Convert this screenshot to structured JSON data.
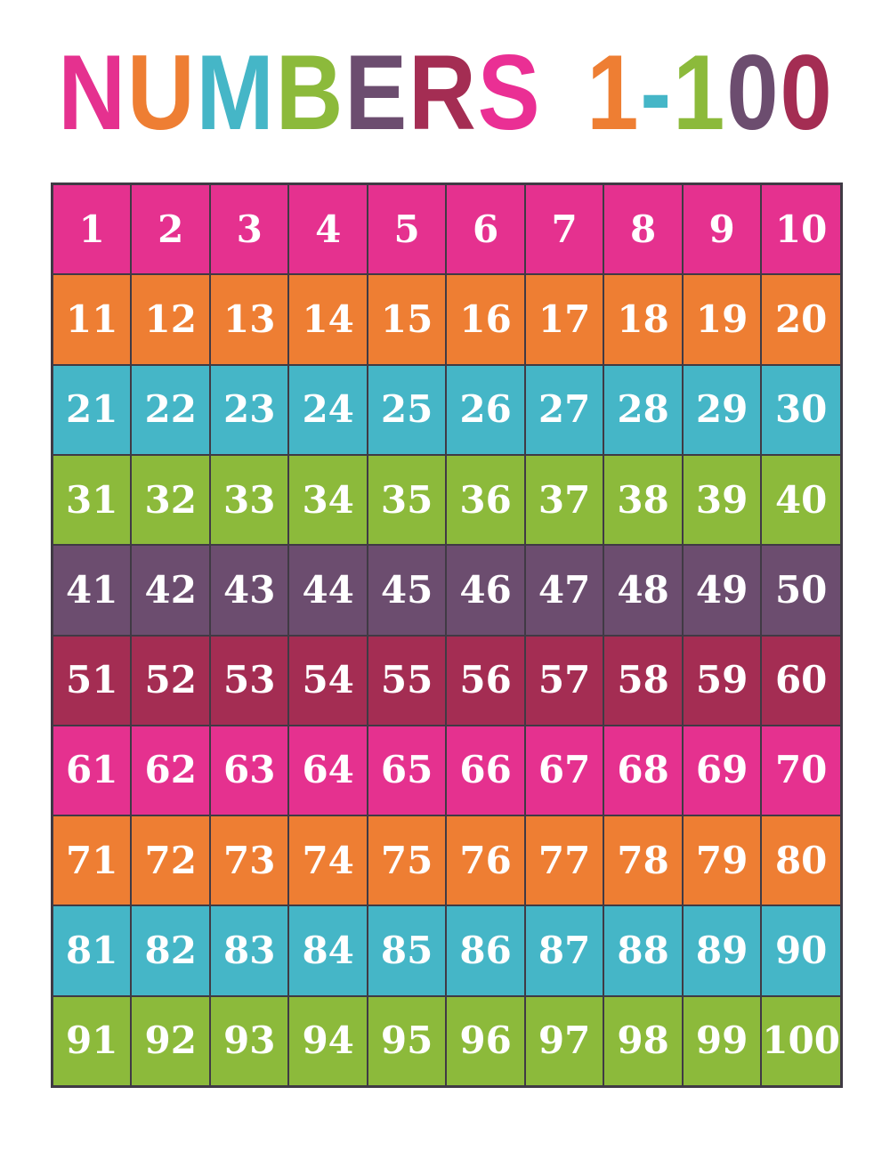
{
  "page": {
    "background_color": "#ffffff"
  },
  "title": {
    "text": "NUMBERS 1-100",
    "letters": [
      {
        "char": "N",
        "color": "#e5318f"
      },
      {
        "char": "U",
        "color": "#ee7e33"
      },
      {
        "char": "M",
        "color": "#45b6c7"
      },
      {
        "char": "B",
        "color": "#8cba3b"
      },
      {
        "char": "E",
        "color": "#6c4d6f"
      },
      {
        "char": "R",
        "color": "#a42d53"
      },
      {
        "char": "S",
        "color": "#ea2f94"
      },
      {
        "char": " ",
        "color": ""
      },
      {
        "char": "1",
        "color": "#ee7e33"
      },
      {
        "char": "-",
        "color": "#45b6c7"
      },
      {
        "char": "1",
        "color": "#8cba3b"
      },
      {
        "char": "0",
        "color": "#6c4d6f"
      },
      {
        "char": "0",
        "color": "#a42d53"
      }
    ]
  },
  "grid": {
    "rows_count": 10,
    "columns_count": 10,
    "border_color": "#403a44",
    "number_color": "#ffffff",
    "row_colors_cycle": [
      "#e5318f",
      "#ee7e33",
      "#45b6c7",
      "#8cba3b",
      "#6c4d6f",
      "#a42d53"
    ],
    "rows": [
      {
        "color": "#e5318f",
        "numbers": [
          1,
          2,
          3,
          4,
          5,
          6,
          7,
          8,
          9,
          10
        ]
      },
      {
        "color": "#ee7e33",
        "numbers": [
          11,
          12,
          13,
          14,
          15,
          16,
          17,
          18,
          19,
          20
        ]
      },
      {
        "color": "#45b6c7",
        "numbers": [
          21,
          22,
          23,
          24,
          25,
          26,
          27,
          28,
          29,
          30
        ]
      },
      {
        "color": "#8cba3b",
        "numbers": [
          31,
          32,
          33,
          34,
          35,
          36,
          37,
          38,
          39,
          40
        ]
      },
      {
        "color": "#6c4d6f",
        "numbers": [
          41,
          42,
          43,
          44,
          45,
          46,
          47,
          48,
          49,
          50
        ]
      },
      {
        "color": "#a42d53",
        "numbers": [
          51,
          52,
          53,
          54,
          55,
          56,
          57,
          58,
          59,
          60
        ]
      },
      {
        "color": "#e5318f",
        "numbers": [
          61,
          62,
          63,
          64,
          65,
          66,
          67,
          68,
          69,
          70
        ]
      },
      {
        "color": "#ee7e33",
        "numbers": [
          71,
          72,
          73,
          74,
          75,
          76,
          77,
          78,
          79,
          80
        ]
      },
      {
        "color": "#45b6c7",
        "numbers": [
          81,
          82,
          83,
          84,
          85,
          86,
          87,
          88,
          89,
          90
        ]
      },
      {
        "color": "#8cba3b",
        "numbers": [
          91,
          92,
          93,
          94,
          95,
          96,
          97,
          98,
          99,
          100
        ]
      }
    ]
  }
}
